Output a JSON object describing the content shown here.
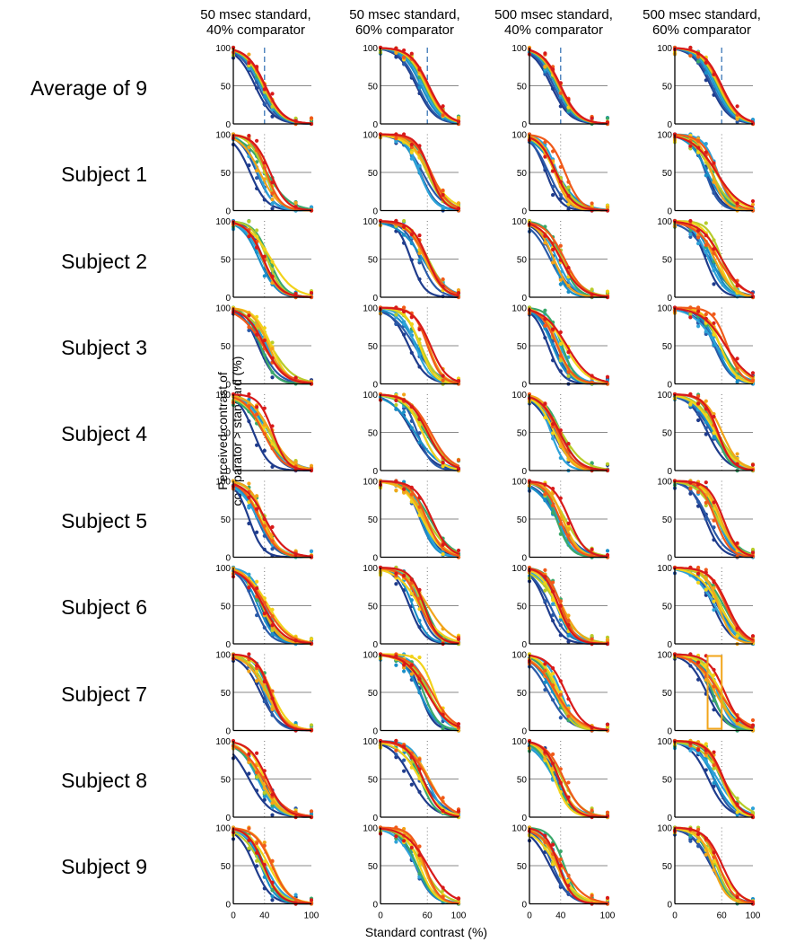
{
  "chart_data": {
    "type": "line",
    "column_titles": [
      "50 msec standard,\n40% comparator",
      "50 msec standard,\n60% comparator",
      "500 msec standard,\n40% comparator",
      "500 msec standard,\n60% comparator"
    ],
    "row_labels": [
      "Average of 9",
      "Subject 1",
      "Subject 2",
      "Subject 3",
      "Subject 4",
      "Subject 5",
      "Subject 6",
      "Subject 7",
      "Subject 8",
      "Subject 9"
    ],
    "comparator_values": [
      40,
      60,
      40,
      60
    ],
    "xlabel": "Standard contrast (%)",
    "ylabel": "Perceived contrast of\ncomparator > standard (%)",
    "xlim": [
      0,
      100
    ],
    "ylim": [
      0,
      100
    ],
    "xticks": [
      0,
      40,
      60,
      100
    ],
    "xtick_labels": [
      [
        "0",
        "40",
        "100"
      ],
      [
        "0",
        "60",
        "100"
      ],
      [
        "0",
        "40",
        "100"
      ],
      [
        "0",
        "60",
        "100"
      ]
    ],
    "yticks": [
      0,
      50,
      100
    ],
    "reference_gridline_y": 50,
    "data_x": [
      0,
      20,
      30,
      40,
      50,
      80,
      100
    ],
    "series_colors": [
      "#1f3c8c",
      "#2a5aa8",
      "#1a8fc8",
      "#2ea2d8",
      "#3aa86a",
      "#b8cc2a",
      "#f2d21a",
      "#f2a51a",
      "#f05a1a",
      "#d81a1a"
    ],
    "midpoints_avg": [
      [
        28,
        32,
        35,
        36,
        37,
        38,
        39,
        40,
        40,
        41
      ],
      [
        46,
        48,
        52,
        55,
        57,
        58,
        59,
        60,
        61,
        62
      ],
      [
        28,
        31,
        34,
        35,
        36,
        37,
        38,
        38,
        39,
        40
      ],
      [
        46,
        48,
        51,
        53,
        55,
        56,
        57,
        58,
        59,
        60
      ]
    ],
    "slope": 0.085
  }
}
